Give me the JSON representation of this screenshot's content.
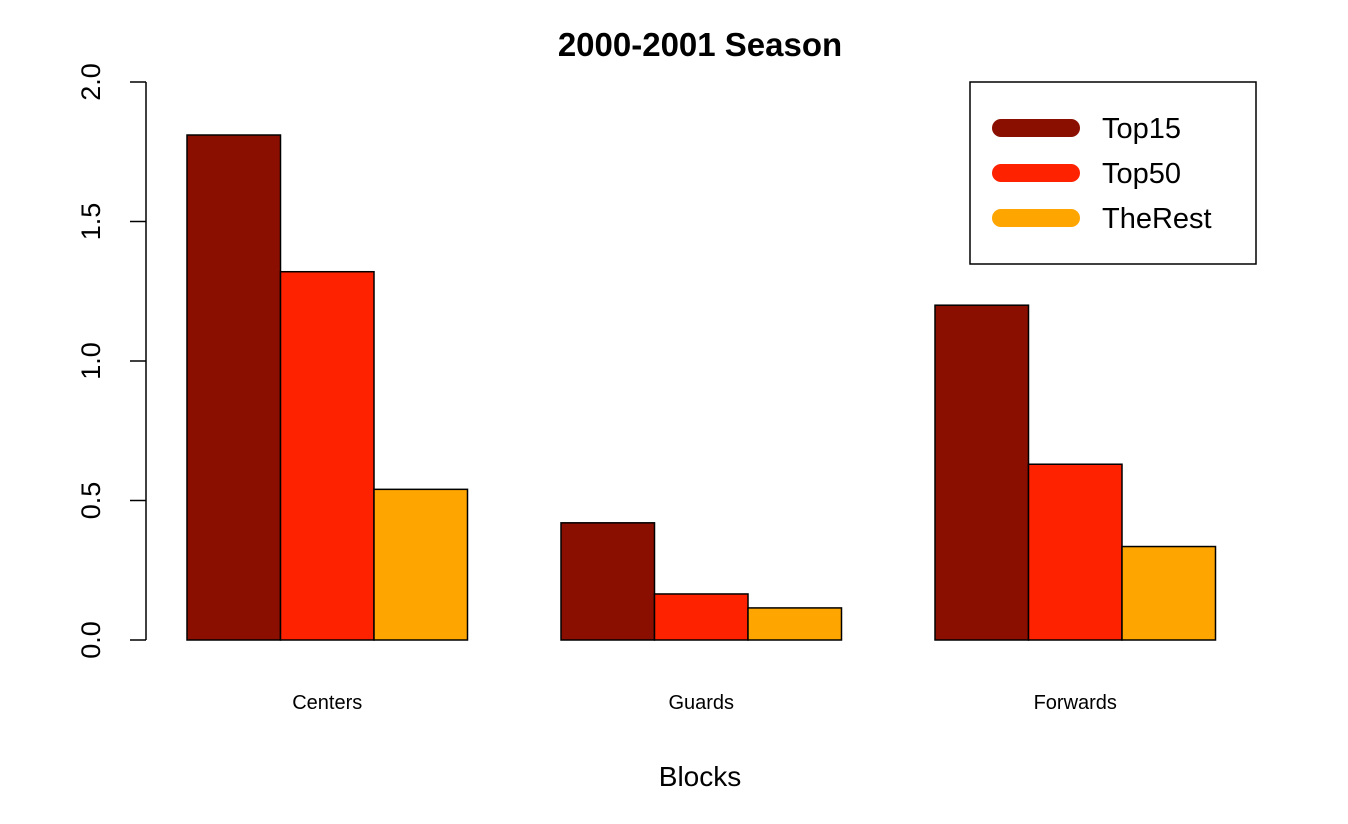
{
  "chart_data": {
    "type": "bar",
    "title": "2000-2001 Season",
    "xlabel": "Blocks",
    "ylabel": "",
    "categories": [
      "Centers",
      "Guards",
      "Forwards"
    ],
    "series": [
      {
        "name": "Top15",
        "color": "#8B0F00",
        "values": [
          1.81,
          0.42,
          1.2
        ]
      },
      {
        "name": "Top50",
        "color": "#FF2200",
        "values": [
          1.32,
          0.165,
          0.63
        ]
      },
      {
        "name": "TheRest",
        "color": "#FFA500",
        "values": [
          0.54,
          0.115,
          0.335
        ]
      }
    ],
    "ylim": [
      0,
      2
    ],
    "yticks": [
      "0.0",
      "0.5",
      "1.0",
      "1.5",
      "2.0"
    ],
    "grid": false,
    "legend_position": "top-right"
  }
}
